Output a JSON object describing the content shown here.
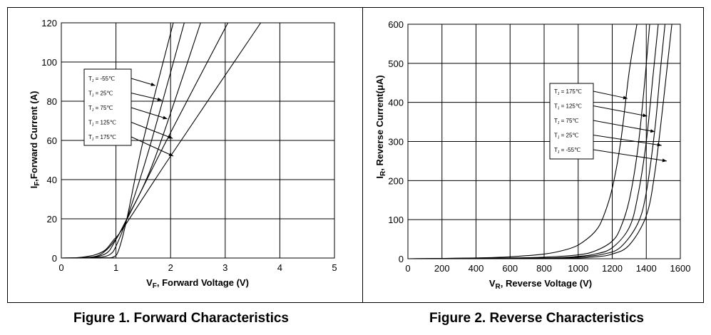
{
  "figure_captions": [
    "Figure 1. Forward Characteristics",
    "Figure 2. Reverse Characteristics"
  ],
  "chart_data": [
    {
      "type": "line",
      "title": "",
      "caption": "Figure 1. Forward Characteristics",
      "xlabel": {
        "main": "V",
        "sub": "F",
        "rest": ", Forward Voltage (V)"
      },
      "ylabel": {
        "main": "I",
        "sub": "F",
        "rest": ",Forward Current (A)"
      },
      "xlim": [
        0,
        5
      ],
      "ylim": [
        0,
        120
      ],
      "xticks": [
        0,
        1,
        2,
        3,
        4,
        5
      ],
      "yticks": [
        0,
        20,
        40,
        60,
        80,
        100,
        120
      ],
      "grid": true,
      "legend_labels": [
        "T<sub>J</sub> = -55℃",
        "T<sub>J</sub> = 25℃",
        "T<sub>J</sub> = 75℃",
        "T<sub>J</sub> = 125℃",
        "T<sub>J</sub> = 175℃"
      ],
      "legend_text": [
        {
          "pre": "T",
          "sub": "J",
          "post": "= -55℃"
        },
        {
          "pre": "T",
          "sub": "J",
          "post": "= 25℃"
        },
        {
          "pre": "T",
          "sub": "J",
          "post": "= 75℃"
        },
        {
          "pre": "T",
          "sub": "J",
          "post": "= 125℃"
        },
        {
          "pre": "T",
          "sub": "J",
          "post": "= 175℃"
        }
      ],
      "series": [
        {
          "name": "TJ = -55℃",
          "x": [
            0,
            0.5,
            0.8,
            0.95,
            1.05,
            1.2,
            1.5,
            2.05
          ],
          "y": [
            0,
            0,
            0.1,
            0.5,
            4,
            20,
            60,
            120
          ]
        },
        {
          "name": "TJ = 25℃",
          "x": [
            0,
            0.5,
            0.75,
            0.9,
            1.0,
            1.2,
            1.6,
            2.25
          ],
          "y": [
            0,
            0.1,
            0.5,
            2,
            6,
            20,
            55,
            120
          ]
        },
        {
          "name": "TJ = 75℃",
          "x": [
            0,
            0.5,
            0.7,
            0.85,
            0.95,
            1.2,
            1.7,
            2.55
          ],
          "y": [
            0,
            0.2,
            1,
            3,
            7,
            20,
            50,
            120
          ]
        },
        {
          "name": "TJ = 125℃",
          "x": [
            0,
            0.4,
            0.65,
            0.8,
            0.95,
            1.15,
            2.0,
            3.05
          ],
          "y": [
            0,
            0.2,
            1,
            3.5,
            8,
            17,
            64,
            120
          ]
        },
        {
          "name": "TJ = 175℃",
          "x": [
            0,
            0.3,
            0.6,
            0.8,
            0.95,
            1.15,
            2.0,
            3.65
          ],
          "y": [
            0,
            0.2,
            1.5,
            4,
            9,
            16,
            52,
            120
          ]
        }
      ]
    },
    {
      "type": "line",
      "title": "",
      "caption": "Figure 2. Reverse Characteristics",
      "xlabel": {
        "main": "V",
        "sub": "R",
        "rest": ", Reverse Voltage (V)"
      },
      "ylabel": {
        "main": "I",
        "sub": "R",
        "rest": ", Reverse Current(μA)"
      },
      "xlim": [
        0,
        1600
      ],
      "ylim": [
        0,
        600
      ],
      "xticks": [
        0,
        200,
        400,
        600,
        800,
        1000,
        1200,
        1400,
        1600
      ],
      "yticks": [
        0,
        100,
        200,
        300,
        400,
        500,
        600
      ],
      "grid": true,
      "legend_text": [
        {
          "pre": "T",
          "sub": "J",
          "post": "= 175℃"
        },
        {
          "pre": "T",
          "sub": "J",
          "post": "= 125℃"
        },
        {
          "pre": "T",
          "sub": "J",
          "post": "= 75℃"
        },
        {
          "pre": "T",
          "sub": "J",
          "post": "= 25℃"
        },
        {
          "pre": "T",
          "sub": "J",
          "post": "= -55℃"
        }
      ],
      "series": [
        {
          "name": "TJ = 175℃",
          "x": [
            0,
            400,
            600,
            800,
            900,
            1000,
            1100,
            1150,
            1200,
            1250,
            1300,
            1345
          ],
          "y": [
            0,
            2,
            5,
            12,
            20,
            35,
            70,
            110,
            180,
            300,
            480,
            600
          ]
        },
        {
          "name": "TJ = 125℃",
          "x": [
            0,
            600,
            800,
            1000,
            1100,
            1200,
            1250,
            1300,
            1350,
            1390,
            1420
          ],
          "y": [
            0,
            2,
            4,
            10,
            20,
            45,
            80,
            150,
            280,
            450,
            600
          ]
        },
        {
          "name": "TJ = 75℃",
          "x": [
            0,
            800,
            1000,
            1100,
            1200,
            1300,
            1350,
            1400,
            1440,
            1470
          ],
          "y": [
            0,
            2,
            6,
            12,
            28,
            80,
            160,
            300,
            470,
            600
          ]
        },
        {
          "name": "TJ = 25℃",
          "x": [
            0,
            800,
            1000,
            1150,
            1250,
            1350,
            1400,
            1450,
            1480,
            1510
          ],
          "y": [
            0,
            1,
            4,
            12,
            30,
            90,
            170,
            330,
            470,
            600
          ]
        },
        {
          "name": "TJ = -55℃",
          "x": [
            0,
            900,
            1100,
            1200,
            1300,
            1400,
            1450,
            1500,
            1530,
            1550
          ],
          "y": [
            0,
            1,
            5,
            12,
            35,
            110,
            220,
            400,
            520,
            600
          ]
        }
      ]
    }
  ]
}
